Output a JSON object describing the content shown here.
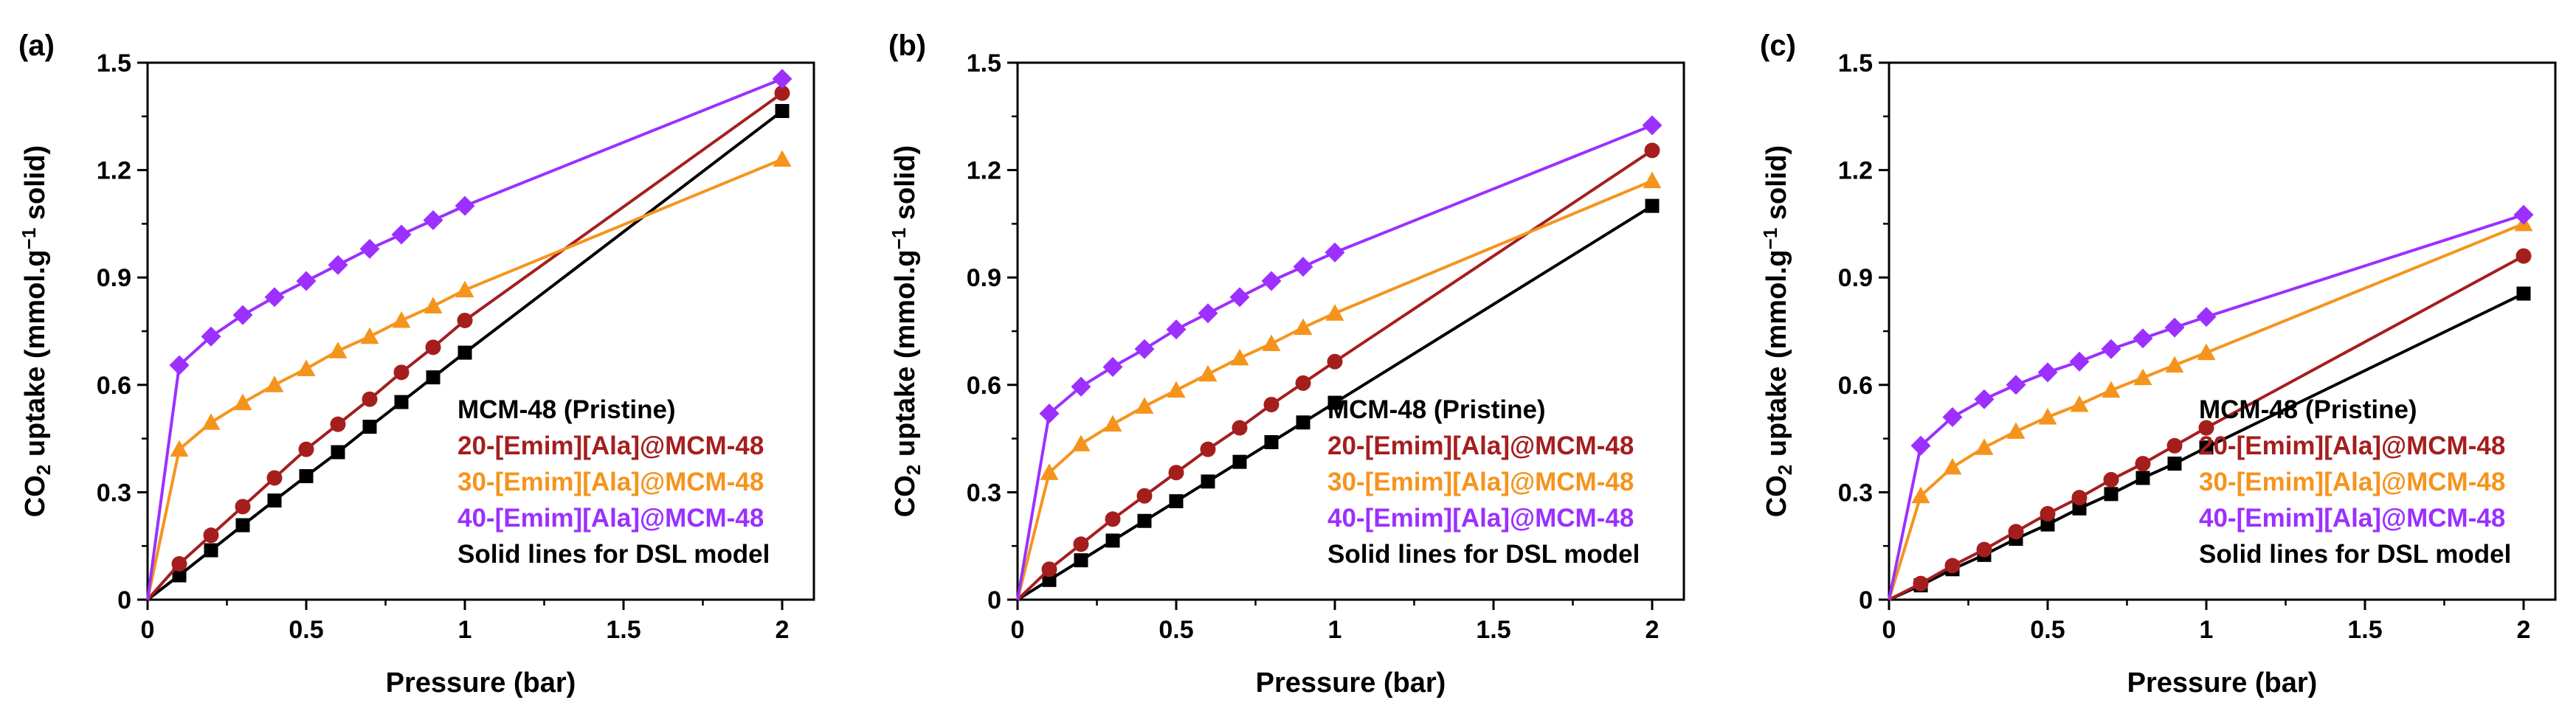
{
  "figure": {
    "note": "Solid lines for DSL model"
  },
  "chart_data": [
    {
      "panel_label": "(a)",
      "type": "line",
      "xlabel": "Pressure (bar)",
      "ylabel": "CO2 uptake (mmol.g-1 solid)",
      "xlim": [
        0,
        2.1
      ],
      "ylim": [
        0,
        1.5
      ],
      "xticks": [
        "0",
        "0.5",
        "1",
        "1.5",
        "2"
      ],
      "yticks": [
        "0",
        "0.3",
        "0.6",
        "0.9",
        "1.2",
        "1.5"
      ],
      "legend_position": "bottom-right",
      "x": [
        0,
        0.1,
        0.2,
        0.3,
        0.4,
        0.5,
        0.6,
        0.7,
        0.8,
        0.9,
        1.0,
        2.0
      ],
      "series": [
        {
          "name": "MCM-48 (Pristine)",
          "color": "#000000",
          "marker": "square",
          "values": [
            0,
            0.068,
            0.138,
            0.208,
            0.277,
            0.345,
            0.412,
            0.483,
            0.552,
            0.621,
            0.69,
            1.365
          ]
        },
        {
          "name": "20-[Emim][Ala]@MCM-48",
          "color": "#A51E1E",
          "marker": "circle",
          "values": [
            0,
            0.1,
            0.18,
            0.26,
            0.34,
            0.42,
            0.49,
            0.56,
            0.635,
            0.705,
            0.78,
            1.415
          ]
        },
        {
          "name": "30-[Emim][Ala]@MCM-48",
          "color": "#F5941D",
          "marker": "triangle",
          "values": [
            0,
            0.42,
            0.495,
            0.55,
            0.6,
            0.645,
            0.695,
            0.735,
            0.78,
            0.82,
            0.865,
            1.23
          ]
        },
        {
          "name": "40-[Emim][Ala]@MCM-48",
          "color": "#9B30FF",
          "marker": "diamond",
          "values": [
            0,
            0.655,
            0.735,
            0.795,
            0.845,
            0.89,
            0.935,
            0.98,
            1.02,
            1.06,
            1.1,
            1.455
          ]
        }
      ]
    },
    {
      "panel_label": "(b)",
      "type": "line",
      "xlabel": "Pressure (bar)",
      "ylabel": "CO2 uptake (mmol.g-1 solid)",
      "xlim": [
        0,
        2.1
      ],
      "ylim": [
        0,
        1.5
      ],
      "xticks": [
        "0",
        "0.5",
        "1",
        "1.5",
        "2"
      ],
      "yticks": [
        "0",
        "0.3",
        "0.6",
        "0.9",
        "1.2",
        "1.5"
      ],
      "legend_position": "bottom-right",
      "x": [
        0,
        0.1,
        0.2,
        0.3,
        0.4,
        0.5,
        0.6,
        0.7,
        0.8,
        0.9,
        1.0,
        2.0
      ],
      "series": [
        {
          "name": "MCM-48 (Pristine)",
          "color": "#000000",
          "marker": "square",
          "values": [
            0,
            0.055,
            0.11,
            0.165,
            0.22,
            0.275,
            0.33,
            0.385,
            0.44,
            0.495,
            0.55,
            1.1
          ]
        },
        {
          "name": "20-[Emim][Ala]@MCM-48",
          "color": "#A51E1E",
          "marker": "circle",
          "values": [
            0,
            0.085,
            0.155,
            0.225,
            0.29,
            0.355,
            0.42,
            0.48,
            0.545,
            0.605,
            0.665,
            1.255
          ]
        },
        {
          "name": "30-[Emim][Ala]@MCM-48",
          "color": "#F5941D",
          "marker": "triangle",
          "values": [
            0,
            0.355,
            0.435,
            0.49,
            0.54,
            0.585,
            0.63,
            0.675,
            0.715,
            0.76,
            0.8,
            1.17
          ]
        },
        {
          "name": "40-[Emim][Ala]@MCM-48",
          "color": "#9B30FF",
          "marker": "diamond",
          "values": [
            0,
            0.52,
            0.595,
            0.65,
            0.7,
            0.755,
            0.8,
            0.845,
            0.89,
            0.93,
            0.97,
            1.325
          ]
        }
      ]
    },
    {
      "panel_label": "(c)",
      "type": "line",
      "xlabel": "Pressure (bar)",
      "ylabel": "CO2 uptake (mmol.g-1 solid)",
      "xlim": [
        0,
        2.1
      ],
      "ylim": [
        0,
        1.5
      ],
      "xticks": [
        "0",
        "0.5",
        "1",
        "1.5",
        "2"
      ],
      "yticks": [
        "0",
        "0.3",
        "0.6",
        "0.9",
        "1.2",
        "1.5"
      ],
      "legend_position": "bottom-right",
      "x": [
        0,
        0.1,
        0.2,
        0.3,
        0.4,
        0.5,
        0.6,
        0.7,
        0.8,
        0.9,
        1.0,
        2.0
      ],
      "series": [
        {
          "name": "MCM-48 (Pristine)",
          "color": "#000000",
          "marker": "square",
          "values": [
            0,
            0.04,
            0.085,
            0.125,
            0.17,
            0.21,
            0.255,
            0.295,
            0.34,
            0.38,
            0.425,
            0.855
          ]
        },
        {
          "name": "20-[Emim][Ala]@MCM-48",
          "color": "#A51E1E",
          "marker": "circle",
          "values": [
            0,
            0.045,
            0.095,
            0.14,
            0.19,
            0.24,
            0.285,
            0.335,
            0.38,
            0.43,
            0.48,
            0.96
          ]
        },
        {
          "name": "30-[Emim][Ala]@MCM-48",
          "color": "#F5941D",
          "marker": "triangle",
          "values": [
            0,
            0.29,
            0.37,
            0.425,
            0.47,
            0.51,
            0.545,
            0.585,
            0.62,
            0.655,
            0.69,
            1.05
          ]
        },
        {
          "name": "40-[Emim][Ala]@MCM-48",
          "color": "#9B30FF",
          "marker": "diamond",
          "values": [
            0,
            0.43,
            0.51,
            0.56,
            0.6,
            0.635,
            0.665,
            0.7,
            0.73,
            0.76,
            0.79,
            1.075
          ]
        }
      ]
    }
  ]
}
